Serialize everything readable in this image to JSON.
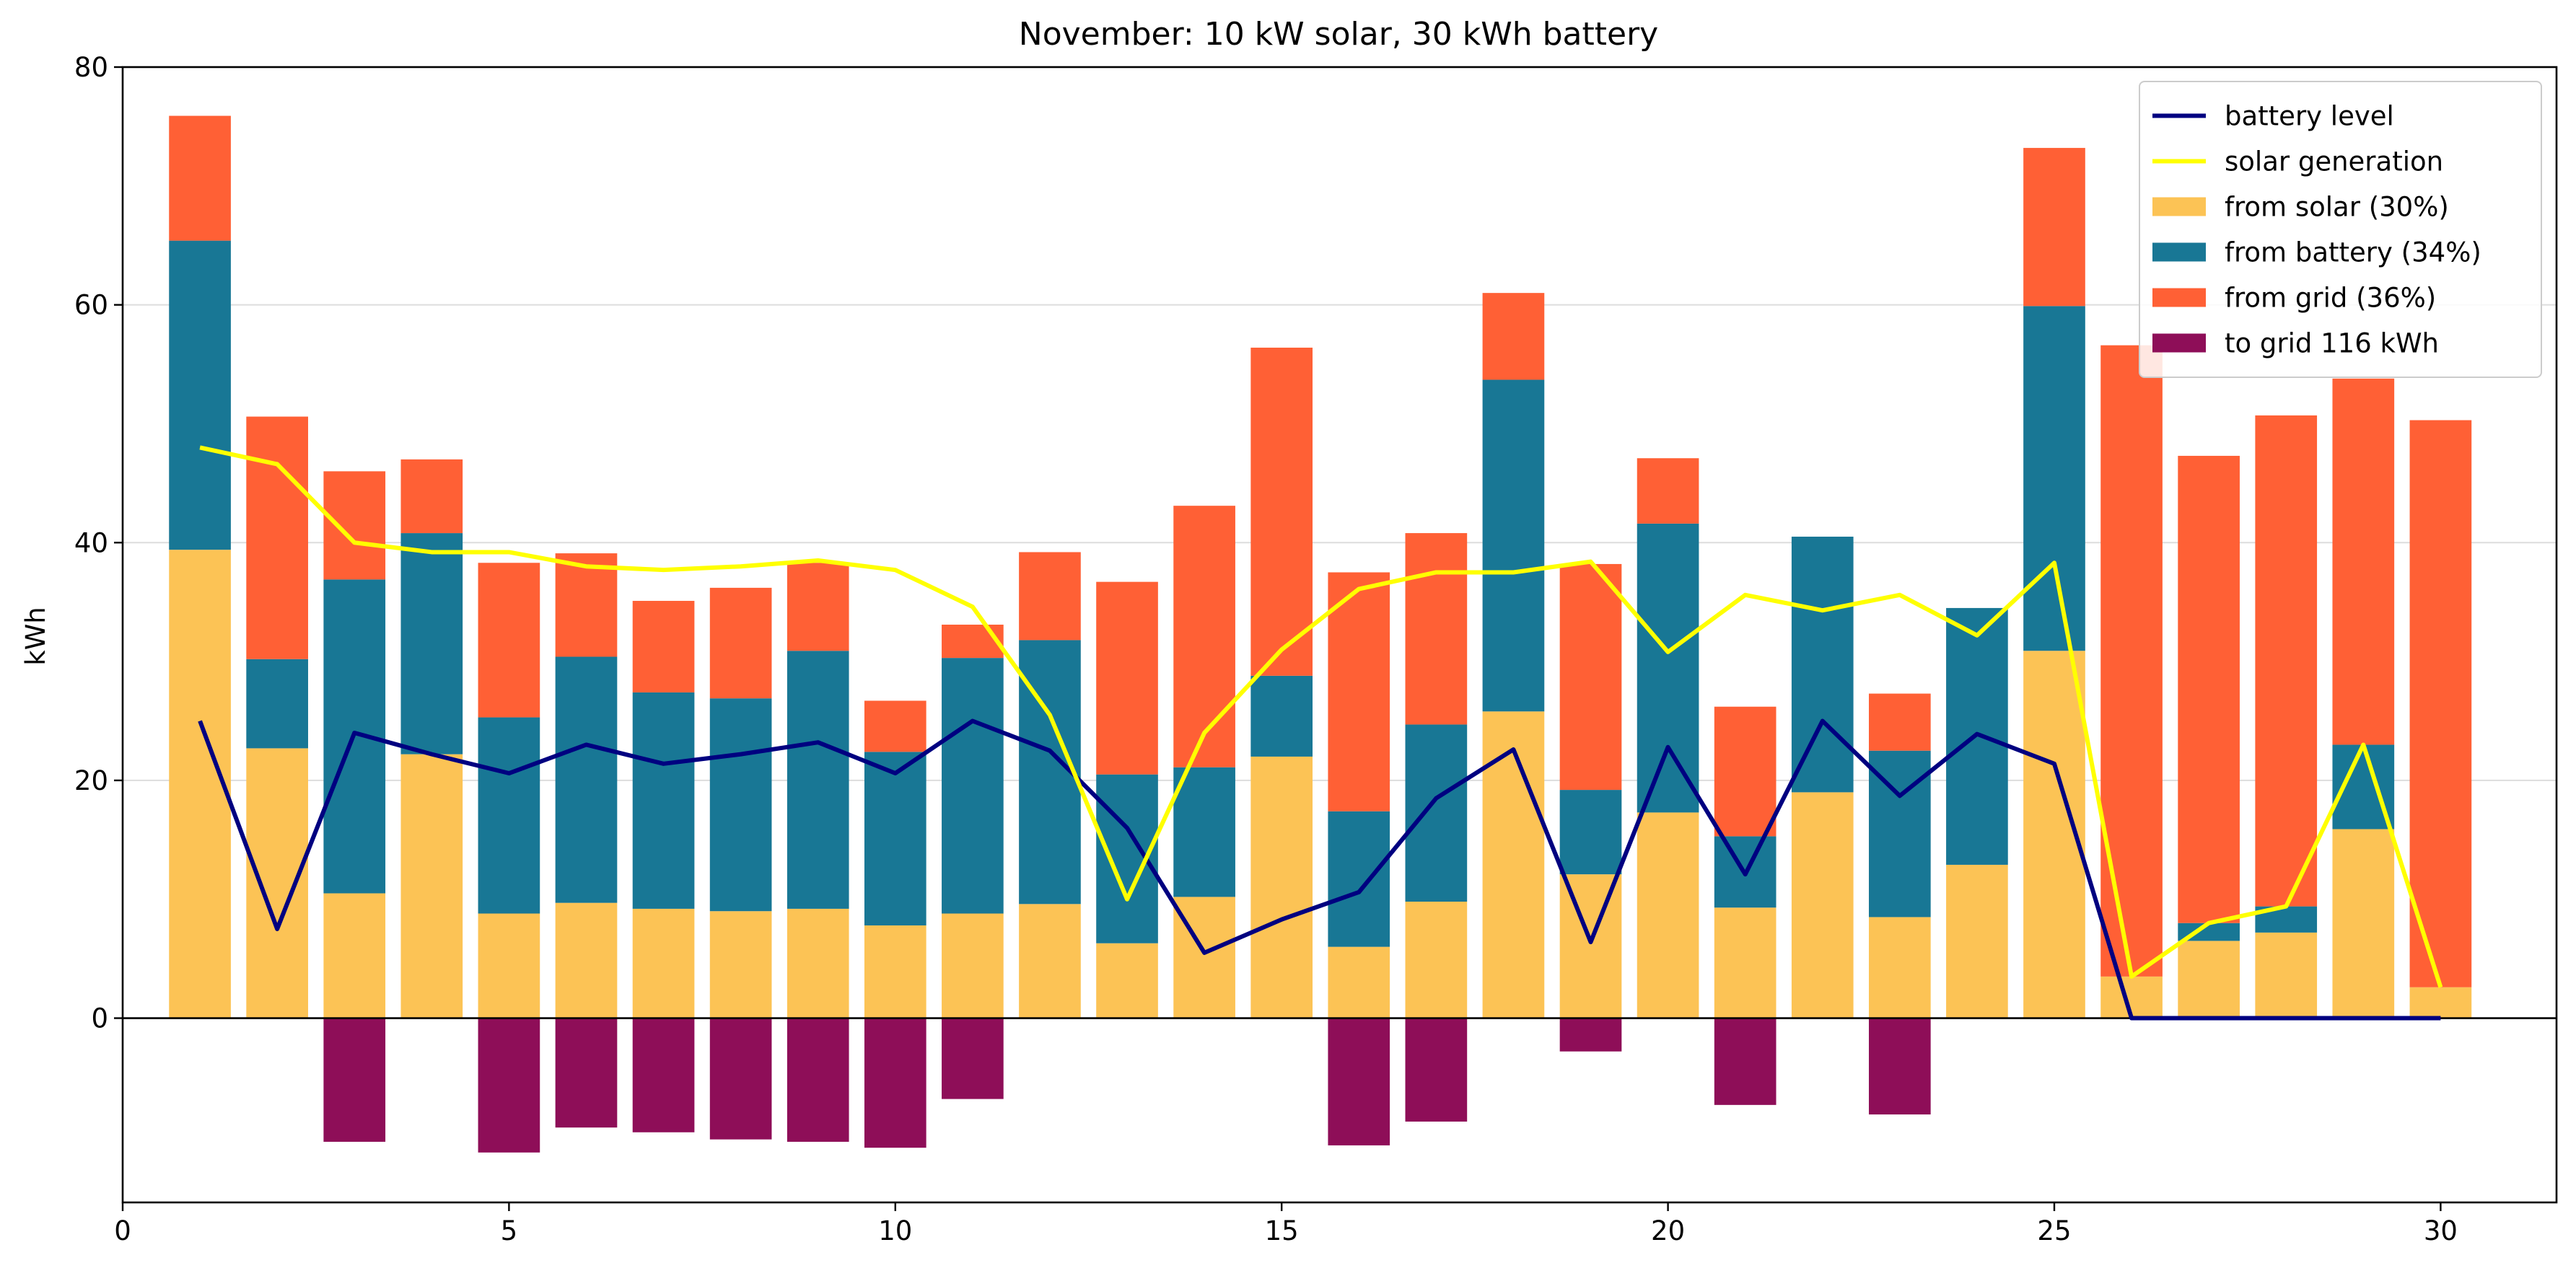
{
  "chart_data": {
    "type": "bar",
    "title": "November: 10 kW solar, 30 kWh battery",
    "xlabel": "",
    "ylabel": "kWh",
    "xlim": [
      0,
      31.5
    ],
    "ylim": [
      -15.5,
      80
    ],
    "xticks": [
      0,
      5,
      10,
      15,
      20,
      25,
      30
    ],
    "yticks": [
      0,
      20,
      40,
      60,
      80
    ],
    "grid": "horizontal",
    "legend_position": "top-right",
    "days": [
      1,
      2,
      3,
      4,
      5,
      6,
      7,
      8,
      9,
      10,
      11,
      12,
      13,
      14,
      15,
      16,
      17,
      18,
      19,
      20,
      21,
      22,
      23,
      24,
      25,
      26,
      27,
      28,
      29,
      30
    ],
    "series": [
      {
        "name": "from solar (30%)",
        "kind": "bar",
        "color": "#fcc355",
        "values": [
          39.4,
          22.7,
          10.5,
          22.2,
          8.8,
          9.7,
          9.2,
          9.0,
          9.2,
          7.8,
          8.8,
          9.6,
          6.3,
          10.2,
          22.0,
          6.0,
          9.8,
          25.8,
          12.1,
          17.3,
          9.3,
          19.0,
          8.5,
          12.9,
          30.9,
          3.5,
          6.5,
          7.2,
          15.9,
          2.6
        ]
      },
      {
        "name": "from battery (34%)",
        "kind": "bar",
        "color": "#187795",
        "values": [
          26.0,
          7.5,
          26.4,
          18.6,
          16.5,
          20.7,
          18.2,
          17.9,
          21.7,
          14.6,
          21.5,
          22.2,
          14.2,
          10.9,
          6.8,
          11.4,
          14.9,
          27.9,
          7.1,
          24.3,
          6.0,
          21.5,
          14.0,
          21.6,
          29.0,
          0,
          1.5,
          2.2,
          7.1,
          0
        ]
      },
      {
        "name": "from grid (36%)",
        "kind": "bar",
        "color": "#ff6035",
        "values": [
          10.5,
          20.4,
          9.1,
          6.2,
          13.0,
          8.7,
          7.7,
          9.3,
          7.4,
          4.3,
          2.8,
          7.4,
          16.2,
          22.0,
          27.6,
          20.1,
          16.1,
          7.3,
          19.0,
          5.5,
          10.9,
          0,
          4.8,
          0,
          13.3,
          53.1,
          39.3,
          41.3,
          30.8,
          47.7
        ]
      },
      {
        "name": "to grid 116 kWh",
        "kind": "bar",
        "color": "#8e0e58",
        "values": [
          0,
          0,
          -10.4,
          0,
          -11.3,
          -9.2,
          -9.6,
          -10.2,
          -10.4,
          -10.9,
          -6.8,
          0,
          0,
          0,
          0,
          -10.7,
          -8.7,
          0,
          -2.8,
          0,
          -7.3,
          0,
          -8.1,
          0,
          0,
          0,
          0,
          0,
          0,
          0
        ]
      },
      {
        "name": "battery level",
        "kind": "line",
        "color": "#000080",
        "values": [
          25.0,
          7.5,
          24.0,
          22.2,
          20.6,
          23.0,
          21.4,
          22.2,
          23.2,
          20.6,
          25.0,
          22.5,
          16.0,
          5.5,
          8.3,
          10.6,
          18.5,
          22.6,
          6.4,
          22.8,
          12.1,
          25.0,
          18.7,
          23.9,
          21.4,
          0,
          0,
          0,
          0,
          0
        ]
      },
      {
        "name": "solar generation",
        "kind": "line",
        "color": "#ffff00",
        "values": [
          48.0,
          46.6,
          40.0,
          39.2,
          39.2,
          38.0,
          37.7,
          38.0,
          38.5,
          37.7,
          34.6,
          25.5,
          10.0,
          24.0,
          31.0,
          36.1,
          37.5,
          37.5,
          38.4,
          30.8,
          35.6,
          34.3,
          35.6,
          32.2,
          38.3,
          3.5,
          8.0,
          9.4,
          23.0,
          2.6
        ]
      }
    ]
  }
}
